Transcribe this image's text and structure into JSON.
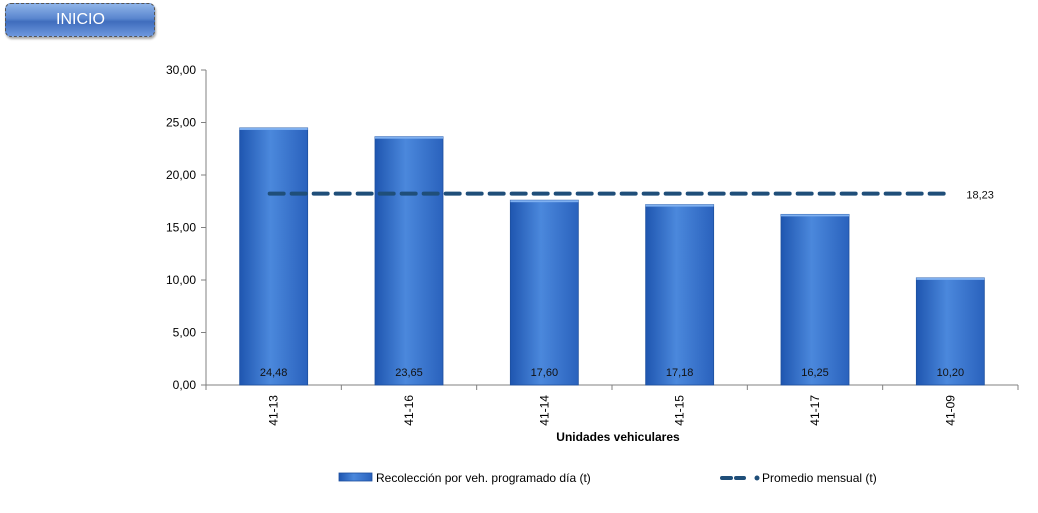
{
  "nav": {
    "inicio_label": "INICIO"
  },
  "chart_data": {
    "type": "bar",
    "categories": [
      "41-13",
      "41-16",
      "41-14",
      "41-15",
      "41-17",
      "41-09"
    ],
    "series": [
      {
        "name": "Recolección por veh. programado día (t)",
        "type": "bar",
        "values": [
          24.48,
          23.65,
          17.6,
          17.18,
          16.25,
          10.2
        ],
        "color": "#3b76d0"
      },
      {
        "name": "Promedio mensual (t)",
        "type": "line",
        "style": "dashed",
        "values": [
          18.23,
          18.23,
          18.23,
          18.23,
          18.23,
          18.23
        ],
        "color": "#1f4e79"
      }
    ],
    "data_labels": [
      "24,48",
      "23,65",
      "17,60",
      "17,18",
      "16,25",
      "10,20"
    ],
    "average_label": "18,23",
    "xlabel": "Unidades vehiculares",
    "ylabel": "",
    "ylim": [
      0,
      30
    ],
    "yticks": [
      "0,00",
      "5,00",
      "10,00",
      "15,00",
      "20,00",
      "25,00",
      "30,00"
    ],
    "legend_position": "bottom",
    "grid": false
  }
}
